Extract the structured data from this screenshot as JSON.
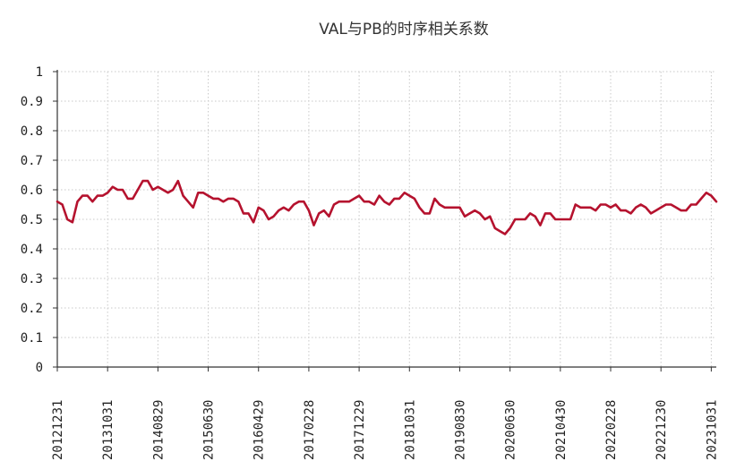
{
  "chart_data": {
    "type": "line",
    "title": "VAL与PB的时序相关系数",
    "xlabel": "",
    "ylabel": "",
    "ylim": [
      0,
      1
    ],
    "yticks": [
      "0",
      "0.1",
      "0.2",
      "0.3",
      "0.4",
      "0.5",
      "0.6",
      "0.7",
      "0.8",
      "0.9",
      "1"
    ],
    "xtick_labels": [
      "20121231",
      "20131031",
      "20140829",
      "20150630",
      "20160429",
      "20170228",
      "20171229",
      "20181031",
      "20190830",
      "20200630",
      "20210430",
      "20220228",
      "20221230",
      "20231031"
    ],
    "grid": true,
    "legend": "none",
    "colors": {
      "line": "#B5122E",
      "grid": "#c8c8c8",
      "axis": "#333333"
    },
    "series": [
      {
        "values": [
          0.56,
          0.55,
          0.5,
          0.49,
          0.56,
          0.58,
          0.58,
          0.56,
          0.58,
          0.58,
          0.59,
          0.61,
          0.6,
          0.6,
          0.57,
          0.57,
          0.6,
          0.63,
          0.63,
          0.6,
          0.61,
          0.6,
          0.59,
          0.6,
          0.63,
          0.58,
          0.56,
          0.54,
          0.59,
          0.59,
          0.58,
          0.57,
          0.57,
          0.56,
          0.57,
          0.57,
          0.56,
          0.52,
          0.52,
          0.49,
          0.54,
          0.53,
          0.5,
          0.51,
          0.53,
          0.54,
          0.53,
          0.55,
          0.56,
          0.56,
          0.53,
          0.48,
          0.52,
          0.53,
          0.51,
          0.55,
          0.56,
          0.56,
          0.56,
          0.57,
          0.58,
          0.56,
          0.56,
          0.55,
          0.58,
          0.56,
          0.55,
          0.57,
          0.57,
          0.59,
          0.58,
          0.57,
          0.54,
          0.52,
          0.52,
          0.57,
          0.55,
          0.54,
          0.54,
          0.54,
          0.54,
          0.51,
          0.52,
          0.53,
          0.52,
          0.5,
          0.51,
          0.47,
          0.46,
          0.45,
          0.47,
          0.5,
          0.5,
          0.5,
          0.52,
          0.51,
          0.48,
          0.52,
          0.52,
          0.5,
          0.5,
          0.5,
          0.5,
          0.55,
          0.54,
          0.54,
          0.54,
          0.53,
          0.55,
          0.55,
          0.54,
          0.55,
          0.53,
          0.53,
          0.52,
          0.54,
          0.55,
          0.54,
          0.52,
          0.53,
          0.54,
          0.55,
          0.55,
          0.54,
          0.53,
          0.53,
          0.55,
          0.55,
          0.57,
          0.59,
          0.58,
          0.56
        ]
      }
    ]
  }
}
